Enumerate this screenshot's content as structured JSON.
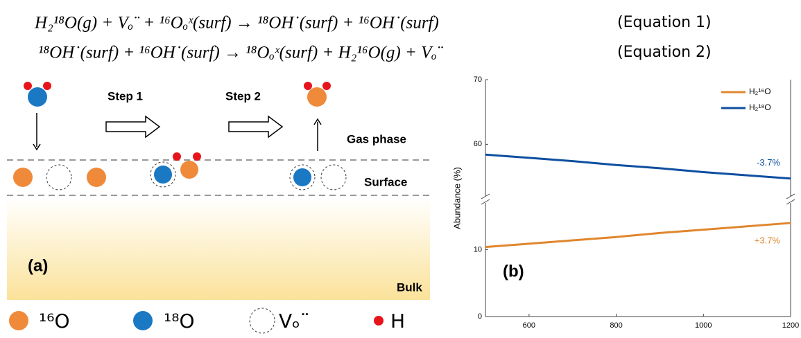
{
  "equations": [
    {
      "text": "H₂¹⁸O(g) + Vₒ¨ + ¹⁶Oₒˣ(surf) → ¹⁸OH˙(surf) + ¹⁶OH˙(surf)",
      "label": "(Equation 1)"
    },
    {
      "text": "¹⁸OH˙(surf) + ¹⁶OH˙(surf) → ¹⁸Oₒˣ(surf) + H₂¹⁶O(g) + Vₒ¨",
      "label": "(Equation 2)"
    }
  ],
  "schematic": {
    "panel": "(a)",
    "step1": "Step 1",
    "step2": "Step 2",
    "gas": "Gas phase",
    "surface": "Surface",
    "bulk": "Bulk",
    "legend": [
      "¹⁶O",
      "¹⁸O",
      "Vₒ¨",
      "H"
    ]
  },
  "chart_data": {
    "type": "line",
    "panel": "(b)",
    "y_label": "Abundance (%)",
    "x": [
      500,
      600,
      700,
      800,
      900,
      1000,
      1100,
      1200
    ],
    "series": [
      {
        "name": "H₂¹⁶O",
        "color": "#e0862e",
        "values": [
          10.4,
          10.9,
          11.4,
          11.9,
          12.5,
          13.0,
          13.5,
          14.0
        ],
        "annotation": "+3.7%"
      },
      {
        "name": "H₂¹⁸O",
        "color": "#0d4fa0",
        "values": [
          58.4,
          57.9,
          57.4,
          56.8,
          56.3,
          55.7,
          55.2,
          54.7
        ],
        "annotation": "-3.7%"
      }
    ],
    "xlim": [
      500,
      1200
    ],
    "xticks": [
      600,
      800,
      1000,
      1200
    ],
    "ylim": [
      0,
      70
    ],
    "y_break": [
      17,
      52
    ],
    "yticks": [
      0,
      10,
      60,
      70
    ]
  }
}
